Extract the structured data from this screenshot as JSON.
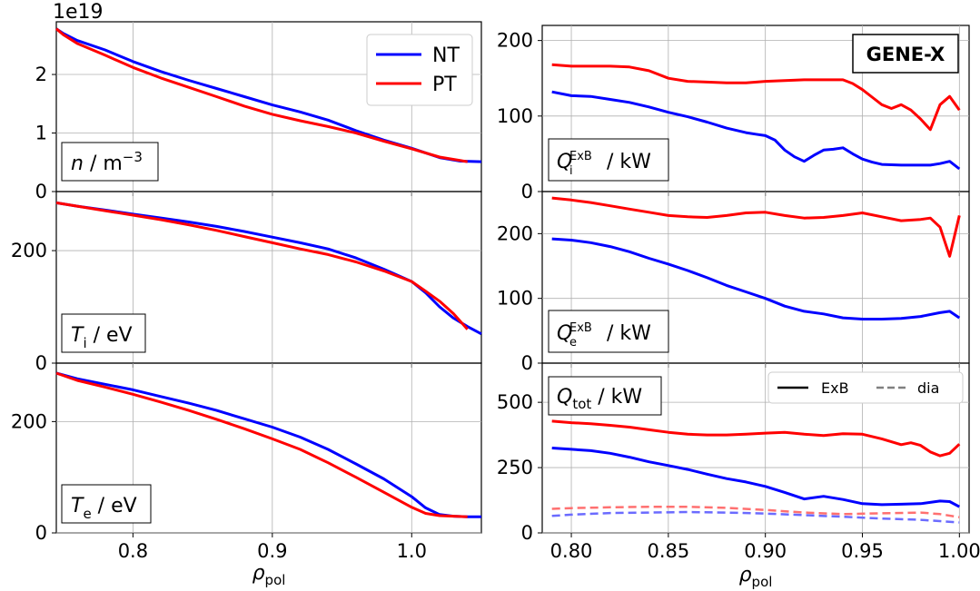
{
  "chart_data": [
    {
      "id": "density",
      "type": "line",
      "ylabel": "n / m⁻³",
      "offset_text": "1e19",
      "xlim": [
        0.745,
        1.05
      ],
      "ylim": [
        0,
        2.9
      ],
      "xticks": [
        "0.8",
        "0.9",
        "1.0"
      ],
      "xtick_values": [
        0.8,
        0.9,
        1.0
      ],
      "yticks": [
        "0",
        "1",
        "2"
      ],
      "ytick_values": [
        0,
        1,
        2
      ],
      "legend": [
        {
          "label": "NT",
          "color": "#0000ff"
        },
        {
          "label": "PT",
          "color": "#ff0000"
        }
      ],
      "series": [
        {
          "name": "NT",
          "color": "#0000ff",
          "dash": false,
          "x": [
            0.745,
            0.75,
            0.76,
            0.78,
            0.8,
            0.82,
            0.84,
            0.86,
            0.88,
            0.9,
            0.92,
            0.94,
            0.96,
            0.98,
            1.0,
            1.02,
            1.035,
            1.05
          ],
          "y": [
            2.78,
            2.7,
            2.58,
            2.42,
            2.22,
            2.05,
            1.9,
            1.76,
            1.62,
            1.48,
            1.36,
            1.22,
            1.04,
            0.88,
            0.74,
            0.58,
            0.52,
            0.51
          ]
        },
        {
          "name": "PT",
          "color": "#ff0000",
          "dash": false,
          "x": [
            0.745,
            0.75,
            0.76,
            0.78,
            0.8,
            0.82,
            0.84,
            0.86,
            0.88,
            0.9,
            0.92,
            0.94,
            0.96,
            0.98,
            1.0,
            1.02,
            1.04
          ],
          "y": [
            2.78,
            2.68,
            2.53,
            2.33,
            2.12,
            1.94,
            1.78,
            1.62,
            1.46,
            1.32,
            1.21,
            1.11,
            1.0,
            0.86,
            0.73,
            0.59,
            0.51
          ]
        }
      ]
    },
    {
      "id": "ion-temperature",
      "type": "line",
      "ylabel": "Ti / eV",
      "xlim": [
        0.745,
        1.05
      ],
      "ylim": [
        0,
        305
      ],
      "xticks": [
        "0.8",
        "0.9",
        "1.0"
      ],
      "xtick_values": [
        0.8,
        0.9,
        1.0
      ],
      "yticks": [
        "0",
        "200"
      ],
      "ytick_values": [
        0,
        200
      ],
      "series": [
        {
          "name": "NT",
          "color": "#0000ff",
          "dash": false,
          "x": [
            0.745,
            0.76,
            0.78,
            0.8,
            0.82,
            0.84,
            0.86,
            0.88,
            0.9,
            0.92,
            0.94,
            0.96,
            0.98,
            1.0,
            1.01,
            1.02,
            1.03,
            1.04,
            1.05
          ],
          "y": [
            285,
            279,
            272,
            265,
            258,
            251,
            243,
            234,
            224,
            214,
            203,
            187,
            167,
            145,
            125,
            100,
            80,
            65,
            52
          ]
        },
        {
          "name": "PT",
          "color": "#ff0000",
          "dash": false,
          "x": [
            0.745,
            0.76,
            0.78,
            0.8,
            0.82,
            0.84,
            0.86,
            0.88,
            0.9,
            0.92,
            0.94,
            0.96,
            0.98,
            1.0,
            1.01,
            1.02,
            1.03,
            1.04
          ],
          "y": [
            285,
            279,
            271,
            263,
            255,
            246,
            236,
            225,
            214,
            203,
            193,
            180,
            164,
            145,
            128,
            110,
            88,
            60
          ]
        }
      ]
    },
    {
      "id": "electron-temperature",
      "type": "line",
      "ylabel": "Te / eV",
      "xlim": [
        0.745,
        1.05
      ],
      "ylim": [
        0,
        305
      ],
      "xticks": [
        "0.8",
        "0.9",
        "1.0"
      ],
      "xtick_values": [
        0.8,
        0.9,
        1.0
      ],
      "yticks": [
        "0",
        "200"
      ],
      "ytick_values": [
        0,
        200
      ],
      "xlabel": "ρpol",
      "series": [
        {
          "name": "NT",
          "color": "#0000ff",
          "dash": false,
          "x": [
            0.745,
            0.76,
            0.78,
            0.8,
            0.82,
            0.84,
            0.86,
            0.88,
            0.9,
            0.92,
            0.94,
            0.96,
            0.98,
            1.0,
            1.01,
            1.02,
            1.03,
            1.04,
            1.05
          ],
          "y": [
            287,
            277,
            267,
            257,
            245,
            233,
            220,
            205,
            190,
            172,
            150,
            124,
            97,
            65,
            45,
            33,
            30,
            29,
            29
          ]
        },
        {
          "name": "PT",
          "color": "#ff0000",
          "dash": false,
          "x": [
            0.745,
            0.76,
            0.78,
            0.8,
            0.82,
            0.84,
            0.86,
            0.88,
            0.9,
            0.92,
            0.94,
            0.96,
            0.98,
            1.0,
            1.01,
            1.02,
            1.03,
            1.04
          ],
          "y": [
            287,
            274,
            262,
            249,
            235,
            220,
            204,
            187,
            169,
            150,
            126,
            100,
            73,
            46,
            35,
            31,
            30,
            29
          ]
        }
      ]
    },
    {
      "id": "ion-heat-flux",
      "type": "line",
      "ylabel": "QiExB / kW",
      "annotation": "GENE-X",
      "xlim": [
        0.785,
        1.005
      ],
      "ylim": [
        0,
        220
      ],
      "xticks": [
        "0.80",
        "0.85",
        "0.90",
        "0.95",
        "1.00"
      ],
      "xtick_values": [
        0.8,
        0.85,
        0.9,
        0.95,
        1.0
      ],
      "yticks": [
        "0",
        "100",
        "200"
      ],
      "ytick_values": [
        0,
        100,
        200
      ],
      "series": [
        {
          "name": "NT",
          "color": "#0000ff",
          "dash": false,
          "x": [
            0.79,
            0.8,
            0.81,
            0.82,
            0.83,
            0.84,
            0.85,
            0.86,
            0.87,
            0.88,
            0.89,
            0.895,
            0.9,
            0.905,
            0.91,
            0.915,
            0.92,
            0.925,
            0.93,
            0.935,
            0.94,
            0.945,
            0.95,
            0.955,
            0.96,
            0.97,
            0.98,
            0.985,
            0.99,
            0.995,
            1.0
          ],
          "y": [
            132,
            127,
            126,
            122,
            118,
            112,
            105,
            99,
            92,
            84,
            78,
            76,
            74,
            68,
            55,
            46,
            40,
            48,
            55,
            56,
            58,
            50,
            43,
            39,
            36,
            35,
            35,
            35,
            37,
            40,
            30
          ]
        },
        {
          "name": "PT",
          "color": "#ff0000",
          "dash": false,
          "x": [
            0.79,
            0.8,
            0.81,
            0.82,
            0.83,
            0.84,
            0.85,
            0.86,
            0.87,
            0.88,
            0.89,
            0.9,
            0.91,
            0.92,
            0.93,
            0.94,
            0.945,
            0.95,
            0.955,
            0.96,
            0.965,
            0.97,
            0.975,
            0.98,
            0.985,
            0.99,
            0.995,
            1.0
          ],
          "y": [
            168,
            166,
            166,
            166,
            165,
            160,
            150,
            146,
            145,
            144,
            144,
            146,
            147,
            148,
            148,
            148,
            143,
            135,
            125,
            115,
            110,
            115,
            108,
            96,
            82,
            115,
            126,
            108
          ]
        }
      ]
    },
    {
      "id": "electron-heat-flux",
      "type": "line",
      "ylabel": "QeExB / kW",
      "xlim": [
        0.785,
        1.005
      ],
      "ylim": [
        0,
        265
      ],
      "xticks": [
        "0.80",
        "0.85",
        "0.90",
        "0.95",
        "1.00"
      ],
      "xtick_values": [
        0.8,
        0.85,
        0.9,
        0.95,
        1.0
      ],
      "yticks": [
        "0",
        "100",
        "200"
      ],
      "ytick_values": [
        0,
        100,
        200
      ],
      "series": [
        {
          "name": "NT",
          "color": "#0000ff",
          "dash": false,
          "x": [
            0.79,
            0.8,
            0.81,
            0.82,
            0.83,
            0.84,
            0.85,
            0.86,
            0.87,
            0.88,
            0.89,
            0.9,
            0.91,
            0.92,
            0.93,
            0.94,
            0.95,
            0.96,
            0.97,
            0.98,
            0.99,
            0.995,
            1.0
          ],
          "y": [
            192,
            190,
            186,
            180,
            172,
            162,
            153,
            143,
            132,
            120,
            110,
            100,
            88,
            80,
            76,
            70,
            68,
            68,
            69,
            72,
            78,
            80,
            70
          ]
        },
        {
          "name": "PT",
          "color": "#ff0000",
          "dash": false,
          "x": [
            0.79,
            0.8,
            0.81,
            0.82,
            0.83,
            0.84,
            0.85,
            0.86,
            0.87,
            0.88,
            0.89,
            0.9,
            0.91,
            0.92,
            0.93,
            0.94,
            0.95,
            0.96,
            0.97,
            0.98,
            0.985,
            0.99,
            0.995,
            1.0
          ],
          "y": [
            255,
            252,
            248,
            243,
            238,
            233,
            228,
            226,
            225,
            228,
            232,
            233,
            228,
            224,
            225,
            228,
            232,
            226,
            220,
            222,
            224,
            210,
            165,
            228
          ]
        }
      ]
    },
    {
      "id": "total-heat-flux",
      "type": "line",
      "ylabel": "Qtot / kW",
      "xlim": [
        0.785,
        1.005
      ],
      "ylim": [
        0,
        650
      ],
      "xticks": [
        "0.80",
        "0.85",
        "0.90",
        "0.95",
        "1.00"
      ],
      "xtick_values": [
        0.8,
        0.85,
        0.9,
        0.95,
        1.0
      ],
      "yticks": [
        "0",
        "250",
        "500"
      ],
      "ytick_values": [
        0,
        250,
        500
      ],
      "xlabel": "ρpol",
      "legend": [
        {
          "label": "ExB",
          "color": "#000000",
          "dash": false
        },
        {
          "label": "dia",
          "color": "#808080",
          "dash": true
        }
      ],
      "series": [
        {
          "name": "NT ExB",
          "color": "#0000ff",
          "dash": false,
          "x": [
            0.79,
            0.8,
            0.81,
            0.82,
            0.83,
            0.84,
            0.85,
            0.86,
            0.87,
            0.88,
            0.89,
            0.9,
            0.91,
            0.92,
            0.93,
            0.94,
            0.95,
            0.96,
            0.97,
            0.98,
            0.99,
            0.995,
            1.0
          ],
          "y": [
            325,
            320,
            315,
            305,
            290,
            272,
            258,
            243,
            225,
            208,
            195,
            178,
            155,
            130,
            140,
            128,
            112,
            108,
            110,
            112,
            122,
            120,
            100
          ]
        },
        {
          "name": "PT ExB",
          "color": "#ff0000",
          "dash": false,
          "x": [
            0.79,
            0.8,
            0.81,
            0.82,
            0.83,
            0.84,
            0.85,
            0.86,
            0.87,
            0.88,
            0.89,
            0.9,
            0.91,
            0.92,
            0.93,
            0.94,
            0.95,
            0.96,
            0.97,
            0.975,
            0.98,
            0.985,
            0.99,
            0.995,
            1.0
          ],
          "y": [
            428,
            422,
            418,
            412,
            405,
            395,
            385,
            378,
            375,
            375,
            378,
            382,
            385,
            378,
            373,
            380,
            378,
            360,
            338,
            345,
            335,
            310,
            295,
            305,
            340
          ]
        },
        {
          "name": "NT dia",
          "color": "#6b6bff",
          "dash": true,
          "x": [
            0.79,
            0.8,
            0.82,
            0.84,
            0.86,
            0.88,
            0.9,
            0.92,
            0.94,
            0.96,
            0.98,
            1.0
          ],
          "y": [
            65,
            70,
            76,
            78,
            80,
            78,
            74,
            68,
            62,
            55,
            50,
            40
          ]
        },
        {
          "name": "PT dia",
          "color": "#ff7070",
          "dash": true,
          "x": [
            0.79,
            0.8,
            0.82,
            0.84,
            0.86,
            0.88,
            0.9,
            0.92,
            0.94,
            0.96,
            0.98,
            0.99,
            1.0
          ],
          "y": [
            92,
            95,
            98,
            100,
            100,
            96,
            88,
            78,
            72,
            75,
            78,
            72,
            60
          ]
        }
      ]
    }
  ]
}
